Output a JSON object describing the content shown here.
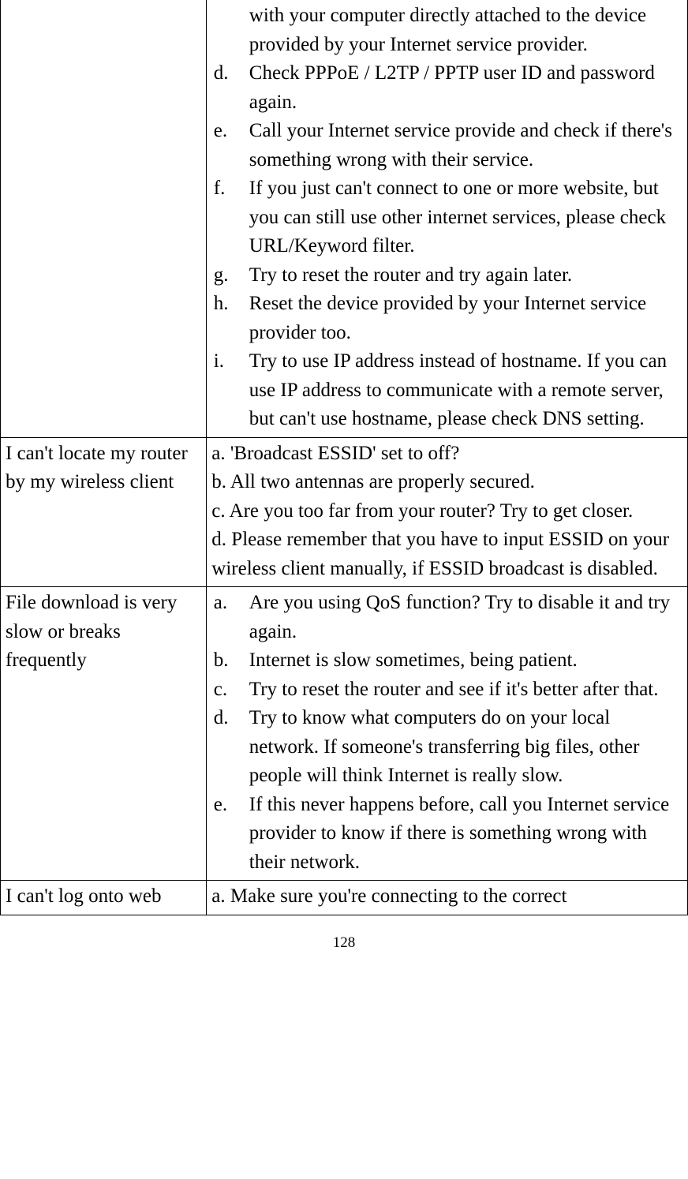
{
  "rows": [
    {
      "left": "",
      "right_list": [
        {
          "m": "",
          "t": "with your computer directly attached to the device provided by your Internet service provider."
        },
        {
          "m": "d.",
          "t": "Check PPPoE / L2TP / PPTP user ID and password again."
        },
        {
          "m": "e.",
          "t": "Call your Internet service provide and check if there's something wrong with their service."
        },
        {
          "m": "f.",
          "t": "If you just can't connect to one or more website, but you can still use other internet services, please check URL/Keyword filter."
        },
        {
          "m": "g.",
          "t": "Try to reset the router and try again later."
        },
        {
          "m": "h.",
          "t": "Reset the device provided by your Internet service provider too."
        },
        {
          "m": "i.",
          "t": "Try to use IP address instead of hostname. If you can use IP address to communicate with a remote server, but can't use hostname, please check DNS setting."
        }
      ]
    },
    {
      "left": "I can't locate my router by my wireless client",
      "right_flat": [
        "a. 'Broadcast ESSID' set to off?",
        "b. All two antennas are properly secured.",
        "c. Are you too far from your router? Try to get closer.",
        "d. Please remember that you have to input ESSID on your wireless client manually, if ESSID broadcast is disabled."
      ]
    },
    {
      "left": "File download is very slow or breaks frequently",
      "right_list": [
        {
          "m": "a.",
          "t": "Are you using QoS function? Try to disable it and try again."
        },
        {
          "m": "b.",
          "t": "Internet is slow sometimes, being patient."
        },
        {
          "m": "c.",
          "t": "Try to reset the router and see if it's better after that."
        },
        {
          "m": "d.",
          "t": "Try to know what computers do on your local network. If someone's transferring big files, other people will think Internet is really slow."
        },
        {
          "m": "e.",
          "t": "If this never happens before, call you Internet service provider to know if there is something wrong with their network."
        }
      ]
    },
    {
      "left": "I can't log onto web",
      "right_flat": [
        "a. Make sure you're connecting to the correct"
      ]
    }
  ],
  "page_number": "128"
}
